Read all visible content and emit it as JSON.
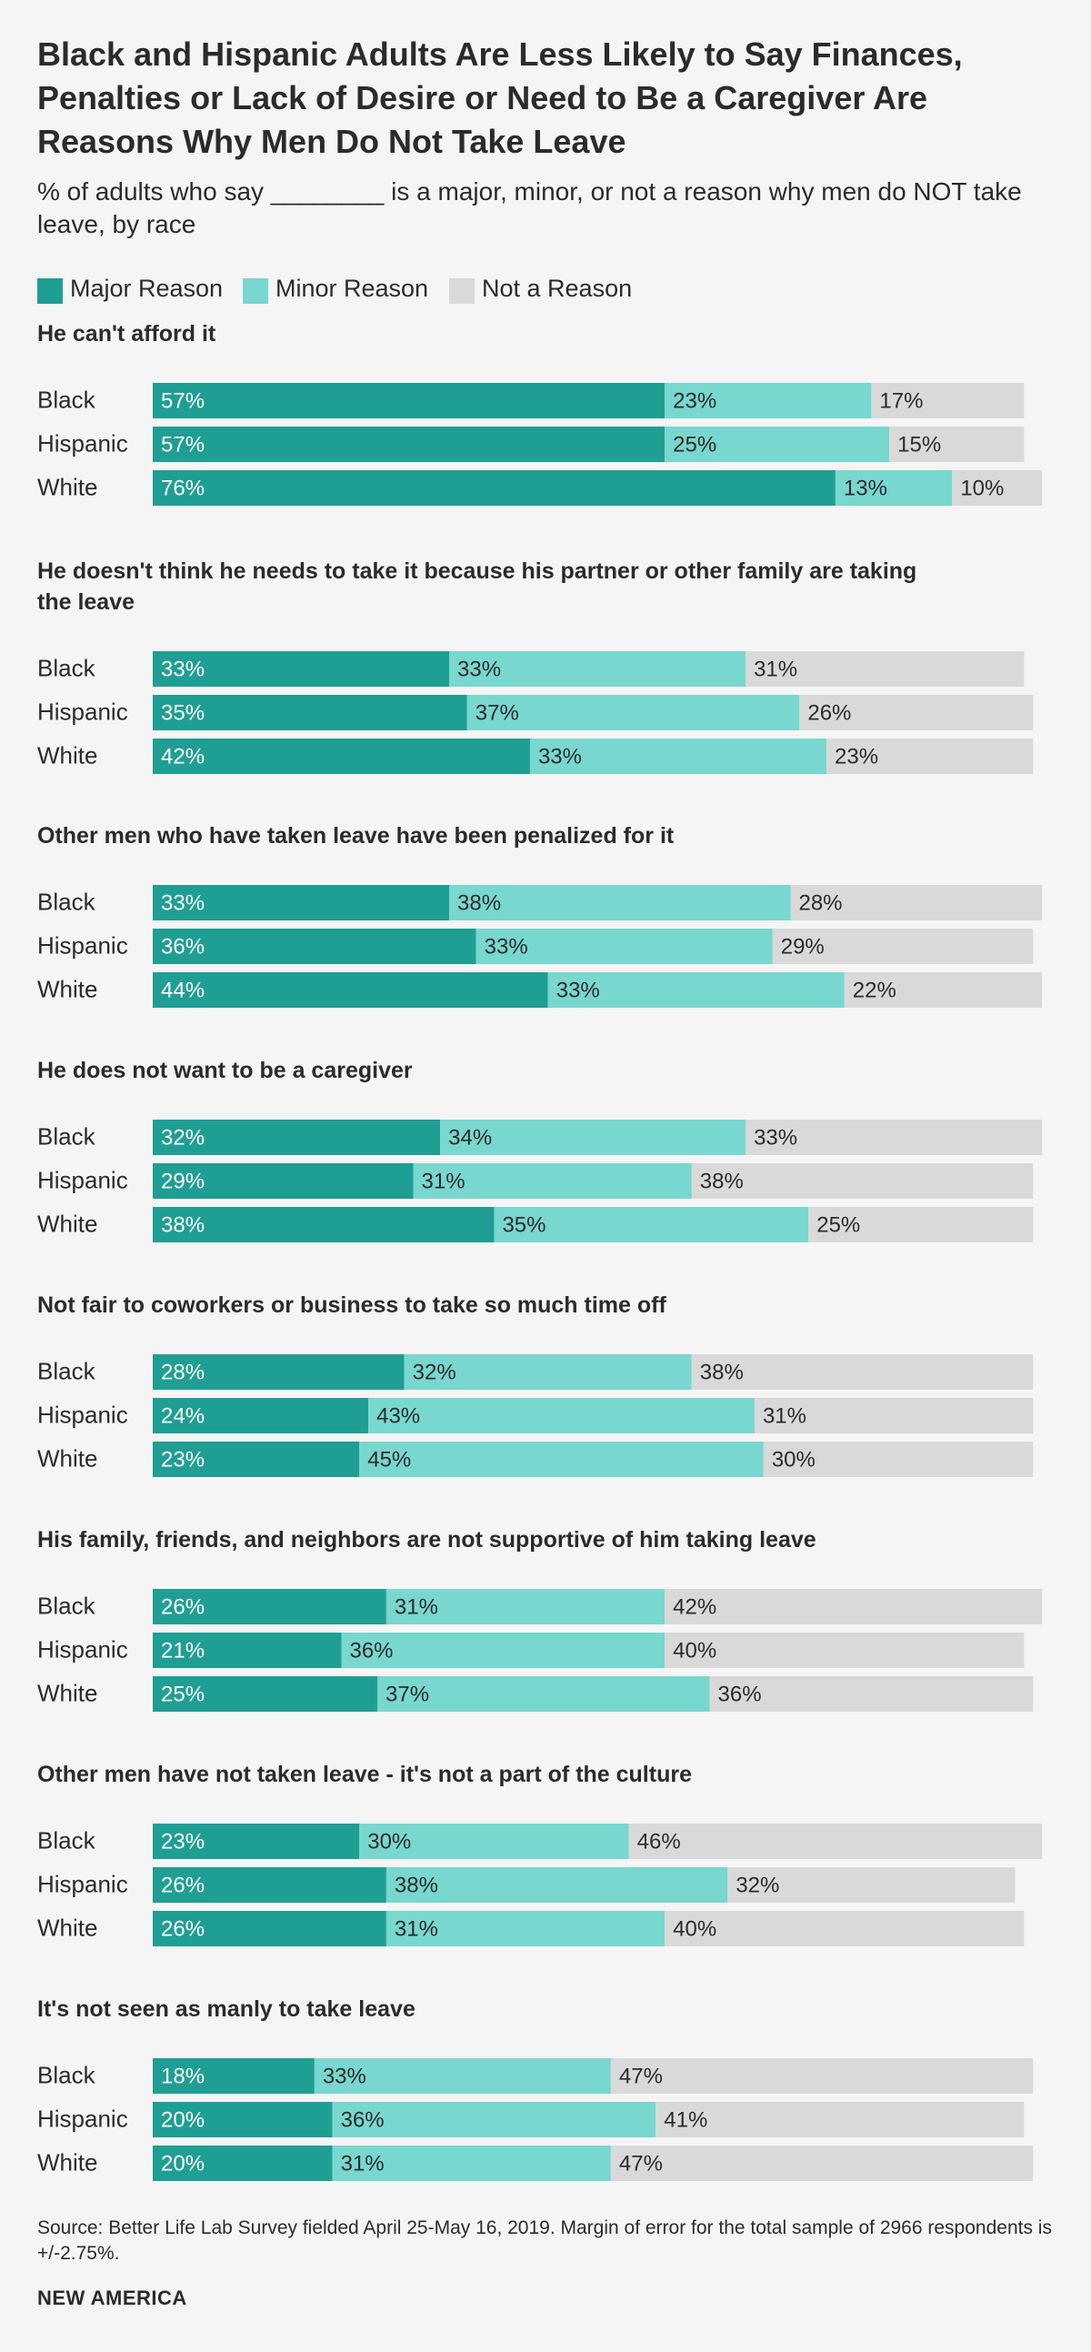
{
  "title": "Black and Hispanic Adults Are Less Likely to Say Finances, Penalties or Lack of Desire or Need to Be a Caregiver Are Reasons Why Men Do Not Take Leave",
  "subtitle": "% of adults who say ________ is a major, minor, or not a reason why men do NOT take leave, by race",
  "legend": [
    {
      "label": "Major Reason",
      "color": "#1f9e94"
    },
    {
      "label": "Minor Reason",
      "color": "#78d7cf"
    },
    {
      "label": "Not a Reason",
      "color": "#d9d9d9"
    }
  ],
  "source": "Source: Better Life Lab Survey fielded April 25-May 16, 2019. Margin of error for the total sample of 2966 respondents is +/-2.75%.",
  "brand": "NEW AMERICA",
  "chart_data": {
    "type": "bar",
    "orientation": "horizontal",
    "stacked": true,
    "unit": "%",
    "series_names": [
      "Major Reason",
      "Minor Reason",
      "Not a Reason"
    ],
    "colors": [
      "#1f9e94",
      "#78d7cf",
      "#d9d9d9"
    ],
    "groups": [
      {
        "title": "He can't afford it",
        "rows": [
          {
            "label": "Black",
            "values": [
              57,
              23,
              17
            ]
          },
          {
            "label": "Hispanic",
            "values": [
              57,
              25,
              15
            ]
          },
          {
            "label": "White",
            "values": [
              76,
              13,
              10
            ]
          }
        ]
      },
      {
        "title": "He doesn't think he needs to take it because his partner or other family are taking the leave",
        "rows": [
          {
            "label": "Black",
            "values": [
              33,
              33,
              31
            ]
          },
          {
            "label": "Hispanic",
            "values": [
              35,
              37,
              26
            ]
          },
          {
            "label": "White",
            "values": [
              42,
              33,
              23
            ]
          }
        ]
      },
      {
        "title": "Other men who have taken leave have been penalized for it",
        "rows": [
          {
            "label": "Black",
            "values": [
              33,
              38,
              28
            ]
          },
          {
            "label": "Hispanic",
            "values": [
              36,
              33,
              29
            ]
          },
          {
            "label": "White",
            "values": [
              44,
              33,
              22
            ]
          }
        ]
      },
      {
        "title": "He does not want to be a caregiver",
        "rows": [
          {
            "label": "Black",
            "values": [
              32,
              34,
              33
            ]
          },
          {
            "label": "Hispanic",
            "values": [
              29,
              31,
              38
            ]
          },
          {
            "label": "White",
            "values": [
              38,
              35,
              25
            ]
          }
        ]
      },
      {
        "title": "Not fair to coworkers or business to take so much time off",
        "rows": [
          {
            "label": "Black",
            "values": [
              28,
              32,
              38
            ]
          },
          {
            "label": "Hispanic",
            "values": [
              24,
              43,
              31
            ]
          },
          {
            "label": "White",
            "values": [
              23,
              45,
              30
            ]
          }
        ]
      },
      {
        "title": "His family, friends, and neighbors are not supportive of him taking leave",
        "rows": [
          {
            "label": "Black",
            "values": [
              26,
              31,
              42
            ]
          },
          {
            "label": "Hispanic",
            "values": [
              21,
              36,
              40
            ]
          },
          {
            "label": "White",
            "values": [
              25,
              37,
              36
            ]
          }
        ]
      },
      {
        "title": "Other men have not taken leave - it's not a part of the culture",
        "rows": [
          {
            "label": "Black",
            "values": [
              23,
              30,
              46
            ]
          },
          {
            "label": "Hispanic",
            "values": [
              26,
              38,
              32
            ]
          },
          {
            "label": "White",
            "values": [
              26,
              31,
              40
            ]
          }
        ]
      },
      {
        "title": "It's not seen as manly to take leave",
        "rows": [
          {
            "label": "Black",
            "values": [
              18,
              33,
              47
            ]
          },
          {
            "label": "Hispanic",
            "values": [
              20,
              36,
              41
            ]
          },
          {
            "label": "White",
            "values": [
              20,
              31,
              47
            ]
          }
        ]
      }
    ]
  }
}
